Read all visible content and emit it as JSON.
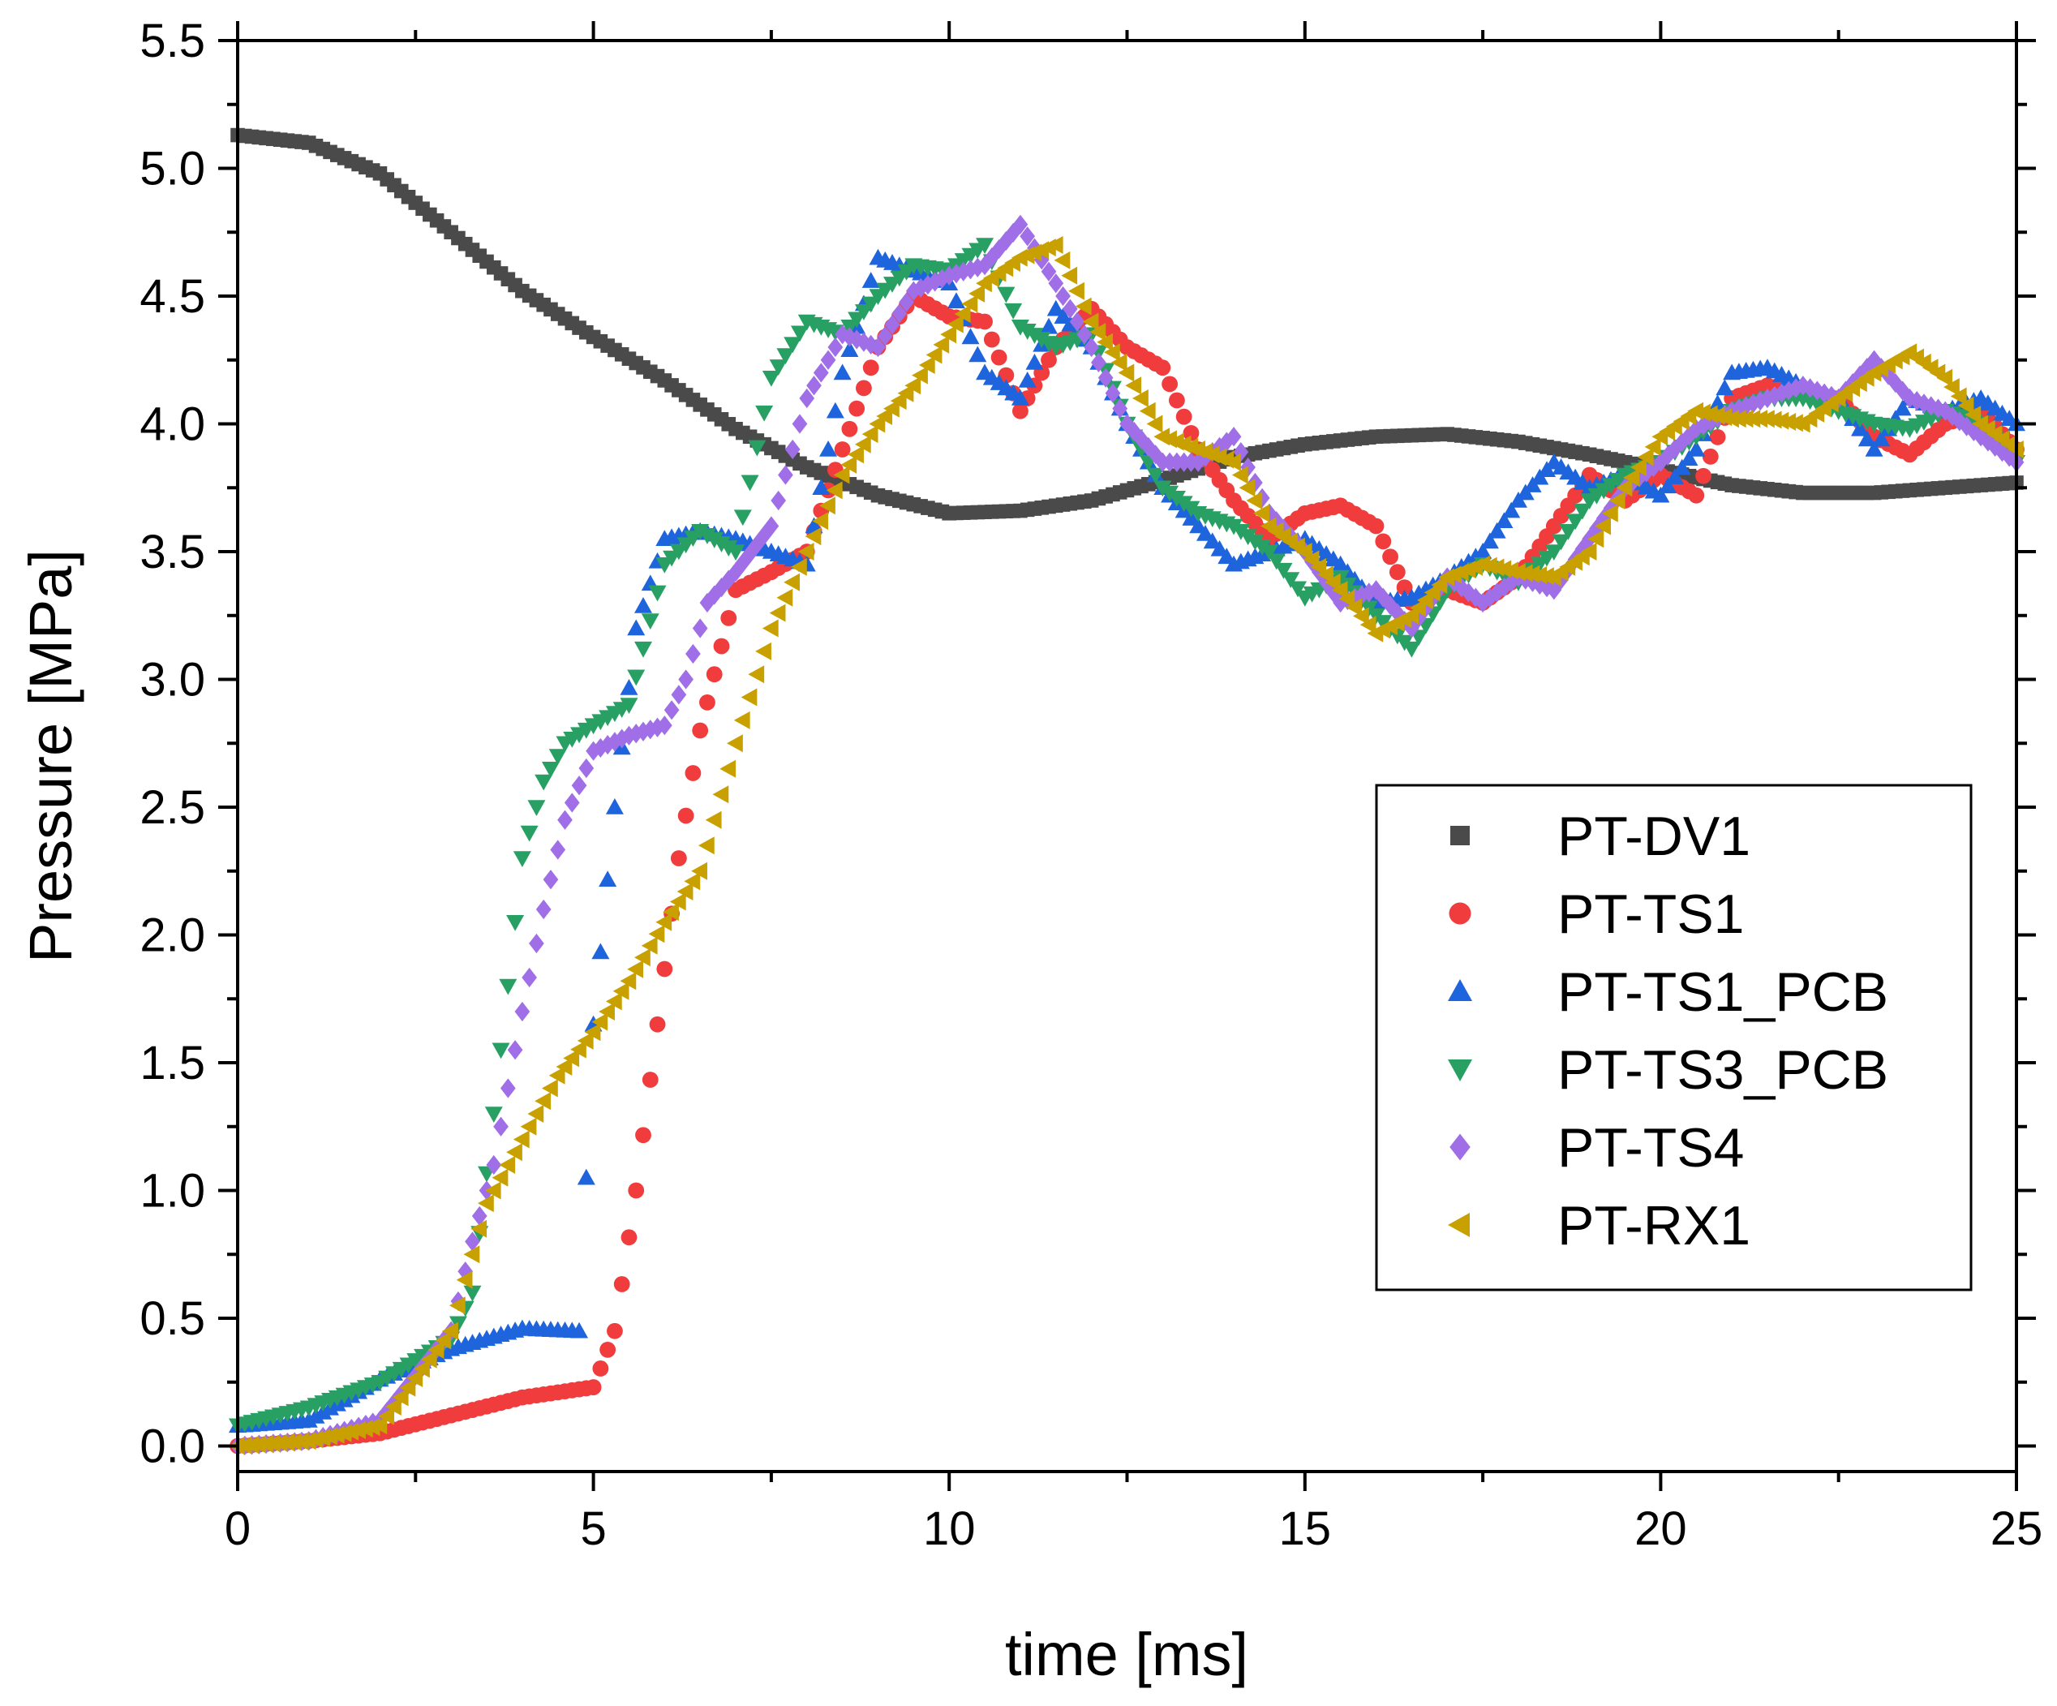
{
  "chart_data": {
    "type": "scatter",
    "xlabel": "time [ms]",
    "ylabel": "Pressure [MPa]",
    "xlim": [
      0,
      25
    ],
    "ylim": [
      -0.1,
      5.5
    ],
    "xticks": [
      "0",
      "5",
      "10",
      "15",
      "20",
      "25"
    ],
    "yticks": [
      "0.0",
      "0.5",
      "1.0",
      "1.5",
      "2.0",
      "2.5",
      "3.0",
      "3.5",
      "4.0",
      "4.5",
      "5.0",
      "5.5"
    ],
    "grid": false,
    "legend_position": "center-right",
    "series": [
      {
        "name": "PT-DV1",
        "marker": "square",
        "color": "#4a4a4a",
        "points": [
          [
            0,
            5.13
          ],
          [
            1,
            5.1
          ],
          [
            2,
            4.98
          ],
          [
            3,
            4.75
          ],
          [
            4,
            4.52
          ],
          [
            5,
            4.34
          ],
          [
            6,
            4.17
          ],
          [
            7,
            3.98
          ],
          [
            8,
            3.83
          ],
          [
            9,
            3.72
          ],
          [
            10,
            3.65
          ],
          [
            11,
            3.66
          ],
          [
            12,
            3.7
          ],
          [
            13,
            3.78
          ],
          [
            14,
            3.87
          ],
          [
            15,
            3.92
          ],
          [
            16,
            3.95
          ],
          [
            17,
            3.96
          ],
          [
            18,
            3.93
          ],
          [
            19,
            3.88
          ],
          [
            20,
            3.82
          ],
          [
            21,
            3.76
          ],
          [
            22,
            3.73
          ],
          [
            23,
            3.73
          ],
          [
            24,
            3.75
          ],
          [
            25,
            3.77
          ]
        ]
      },
      {
        "name": "PT-TS1",
        "marker": "circle",
        "color": "#f03c3c",
        "points": [
          [
            0,
            0.0
          ],
          [
            1,
            0.02
          ],
          [
            2,
            0.05
          ],
          [
            3,
            0.12
          ],
          [
            4,
            0.19
          ],
          [
            5,
            0.23
          ],
          [
            5.3,
            0.45
          ],
          [
            5.6,
            1.0
          ],
          [
            5.9,
            1.65
          ],
          [
            6.2,
            2.3
          ],
          [
            6.5,
            2.8
          ],
          [
            7,
            3.35
          ],
          [
            7.5,
            3.42
          ],
          [
            8,
            3.5
          ],
          [
            8.5,
            3.9
          ],
          [
            9,
            4.3
          ],
          [
            9.5,
            4.5
          ],
          [
            10,
            4.42
          ],
          [
            10.5,
            4.4
          ],
          [
            11,
            4.05
          ],
          [
            11.5,
            4.3
          ],
          [
            12,
            4.45
          ],
          [
            12.5,
            4.3
          ],
          [
            13,
            4.22
          ],
          [
            13.5,
            3.9
          ],
          [
            14,
            3.7
          ],
          [
            14.5,
            3.55
          ],
          [
            15,
            3.65
          ],
          [
            15.5,
            3.68
          ],
          [
            16,
            3.6
          ],
          [
            16.5,
            3.3
          ],
          [
            17,
            3.35
          ],
          [
            17.5,
            3.3
          ],
          [
            18,
            3.4
          ],
          [
            18.5,
            3.6
          ],
          [
            19,
            3.8
          ],
          [
            19.5,
            3.7
          ],
          [
            20,
            3.8
          ],
          [
            20.5,
            3.72
          ],
          [
            21,
            4.1
          ],
          [
            21.5,
            4.15
          ],
          [
            22,
            4.12
          ],
          [
            22.5,
            4.1
          ],
          [
            23,
            3.95
          ],
          [
            23.5,
            3.88
          ],
          [
            24,
            4.0
          ],
          [
            24.5,
            4.05
          ],
          [
            25,
            3.9
          ]
        ]
      },
      {
        "name": "PT-TS1_PCB",
        "marker": "triangle-up",
        "color": "#1e64dc",
        "points": [
          [
            0,
            0.08
          ],
          [
            1,
            0.1
          ],
          [
            2,
            0.26
          ],
          [
            3,
            0.38
          ],
          [
            4,
            0.46
          ],
          [
            4.8,
            0.45
          ],
          [
            5,
            1.65
          ],
          [
            5.3,
            2.5
          ],
          [
            5.6,
            3.2
          ],
          [
            6,
            3.55
          ],
          [
            6.5,
            3.58
          ],
          [
            7,
            3.55
          ],
          [
            7.5,
            3.5
          ],
          [
            8,
            3.45
          ],
          [
            8.5,
            4.2
          ],
          [
            9,
            4.65
          ],
          [
            9.5,
            4.6
          ],
          [
            10,
            4.55
          ],
          [
            10.5,
            4.2
          ],
          [
            11,
            4.1
          ],
          [
            11.5,
            4.45
          ],
          [
            12,
            4.3
          ],
          [
            12.5,
            4.0
          ],
          [
            13,
            3.75
          ],
          [
            13.5,
            3.6
          ],
          [
            14,
            3.45
          ],
          [
            14.5,
            3.5
          ],
          [
            15,
            3.55
          ],
          [
            15.5,
            3.45
          ],
          [
            16,
            3.3
          ],
          [
            16.5,
            3.32
          ],
          [
            17,
            3.4
          ],
          [
            17.5,
            3.5
          ],
          [
            18,
            3.7
          ],
          [
            18.5,
            3.85
          ],
          [
            19,
            3.75
          ],
          [
            19.5,
            3.8
          ],
          [
            20,
            3.72
          ],
          [
            20.5,
            3.9
          ],
          [
            21,
            4.2
          ],
          [
            21.5,
            4.22
          ],
          [
            22,
            4.15
          ],
          [
            22.5,
            4.1
          ],
          [
            23,
            3.9
          ],
          [
            23.5,
            4.1
          ],
          [
            24,
            4.05
          ],
          [
            24.5,
            4.1
          ],
          [
            25,
            4.0
          ]
        ]
      },
      {
        "name": "PT-TS3_PCB",
        "marker": "triangle-down",
        "color": "#28a064",
        "points": [
          [
            0,
            0.08
          ],
          [
            1,
            0.15
          ],
          [
            2,
            0.25
          ],
          [
            3,
            0.42
          ],
          [
            3.3,
            0.6
          ],
          [
            3.6,
            1.3
          ],
          [
            3.8,
            1.8
          ],
          [
            4,
            2.3
          ],
          [
            4.3,
            2.6
          ],
          [
            4.6,
            2.75
          ],
          [
            5,
            2.82
          ],
          [
            5.5,
            2.9
          ],
          [
            6,
            3.45
          ],
          [
            6.5,
            3.58
          ],
          [
            7,
            3.5
          ],
          [
            7.5,
            4.18
          ],
          [
            8,
            4.4
          ],
          [
            8.5,
            4.35
          ],
          [
            9,
            4.5
          ],
          [
            9.5,
            4.62
          ],
          [
            10,
            4.6
          ],
          [
            10.5,
            4.7
          ],
          [
            11,
            4.38
          ],
          [
            11.5,
            4.3
          ],
          [
            12,
            4.35
          ],
          [
            12.5,
            4.0
          ],
          [
            13,
            3.75
          ],
          [
            13.5,
            3.65
          ],
          [
            14,
            3.6
          ],
          [
            14.5,
            3.5
          ],
          [
            15,
            3.32
          ],
          [
            15.5,
            3.4
          ],
          [
            16,
            3.25
          ],
          [
            16.5,
            3.12
          ],
          [
            17,
            3.35
          ],
          [
            17.5,
            3.45
          ],
          [
            18,
            3.38
          ],
          [
            18.5,
            3.5
          ],
          [
            19,
            3.7
          ],
          [
            19.5,
            3.8
          ],
          [
            20,
            3.85
          ],
          [
            20.5,
            3.95
          ],
          [
            21,
            4.05
          ],
          [
            21.5,
            4.1
          ],
          [
            22,
            4.1
          ],
          [
            22.5,
            4.05
          ],
          [
            23,
            4.0
          ],
          [
            23.5,
            3.98
          ],
          [
            24,
            4.05
          ],
          [
            24.5,
            4.0
          ],
          [
            25,
            3.85
          ]
        ]
      },
      {
        "name": "PT-TS4",
        "marker": "diamond",
        "color": "#a06ee6",
        "points": [
          [
            0,
            0.0
          ],
          [
            1,
            0.02
          ],
          [
            2,
            0.1
          ],
          [
            3,
            0.45
          ],
          [
            3.3,
            0.8
          ],
          [
            3.6,
            1.1
          ],
          [
            4,
            1.7
          ],
          [
            4.3,
            2.1
          ],
          [
            4.6,
            2.45
          ],
          [
            5,
            2.72
          ],
          [
            5.5,
            2.78
          ],
          [
            6,
            2.82
          ],
          [
            6.3,
            3.0
          ],
          [
            6.6,
            3.3
          ],
          [
            7,
            3.42
          ],
          [
            7.5,
            3.6
          ],
          [
            8,
            4.1
          ],
          [
            8.5,
            4.35
          ],
          [
            9,
            4.3
          ],
          [
            9.5,
            4.52
          ],
          [
            10,
            4.58
          ],
          [
            10.5,
            4.62
          ],
          [
            11,
            4.78
          ],
          [
            11.5,
            4.55
          ],
          [
            12,
            4.3
          ],
          [
            12.5,
            4.0
          ],
          [
            13,
            3.85
          ],
          [
            13.5,
            3.85
          ],
          [
            14,
            3.95
          ],
          [
            14.5,
            3.65
          ],
          [
            15,
            3.5
          ],
          [
            15.5,
            3.3
          ],
          [
            16,
            3.35
          ],
          [
            16.5,
            3.2
          ],
          [
            17,
            3.4
          ],
          [
            17.5,
            3.3
          ],
          [
            18,
            3.4
          ],
          [
            18.5,
            3.35
          ],
          [
            19,
            3.55
          ],
          [
            19.5,
            3.75
          ],
          [
            20,
            3.85
          ],
          [
            20.5,
            3.98
          ],
          [
            21,
            4.05
          ],
          [
            21.5,
            4.1
          ],
          [
            22,
            4.15
          ],
          [
            22.5,
            4.1
          ],
          [
            23,
            4.25
          ],
          [
            23.5,
            4.1
          ],
          [
            24,
            4.05
          ],
          [
            24.5,
            3.95
          ],
          [
            25,
            3.85
          ]
        ]
      },
      {
        "name": "PT-RX1",
        "marker": "triangle-left",
        "color": "#c8a000",
        "points": [
          [
            0,
            0.0
          ],
          [
            1,
            0.02
          ],
          [
            2,
            0.08
          ],
          [
            3,
            0.45
          ],
          [
            3.5,
            0.95
          ],
          [
            4,
            1.2
          ],
          [
            4.5,
            1.45
          ],
          [
            5,
            1.62
          ],
          [
            5.5,
            1.82
          ],
          [
            6,
            2.05
          ],
          [
            6.5,
            2.25
          ],
          [
            7,
            2.75
          ],
          [
            7.5,
            3.2
          ],
          [
            8,
            3.5
          ],
          [
            8.5,
            3.8
          ],
          [
            9,
            4.0
          ],
          [
            9.5,
            4.15
          ],
          [
            10,
            4.35
          ],
          [
            10.5,
            4.55
          ],
          [
            11,
            4.65
          ],
          [
            11.5,
            4.7
          ],
          [
            12,
            4.4
          ],
          [
            12.5,
            4.2
          ],
          [
            13,
            3.95
          ],
          [
            13.5,
            3.9
          ],
          [
            14,
            3.85
          ],
          [
            14.5,
            3.6
          ],
          [
            15,
            3.5
          ],
          [
            15.5,
            3.35
          ],
          [
            16,
            3.18
          ],
          [
            16.5,
            3.25
          ],
          [
            17,
            3.4
          ],
          [
            17.5,
            3.45
          ],
          [
            18,
            3.42
          ],
          [
            18.5,
            3.4
          ],
          [
            19,
            3.5
          ],
          [
            19.5,
            3.75
          ],
          [
            20,
            3.95
          ],
          [
            20.5,
            4.05
          ],
          [
            21,
            4.02
          ],
          [
            21.5,
            4.02
          ],
          [
            22,
            4.0
          ],
          [
            22.5,
            4.1
          ],
          [
            23,
            4.2
          ],
          [
            23.5,
            4.28
          ],
          [
            24,
            4.18
          ],
          [
            24.5,
            4.0
          ],
          [
            25,
            3.9
          ]
        ]
      }
    ]
  }
}
